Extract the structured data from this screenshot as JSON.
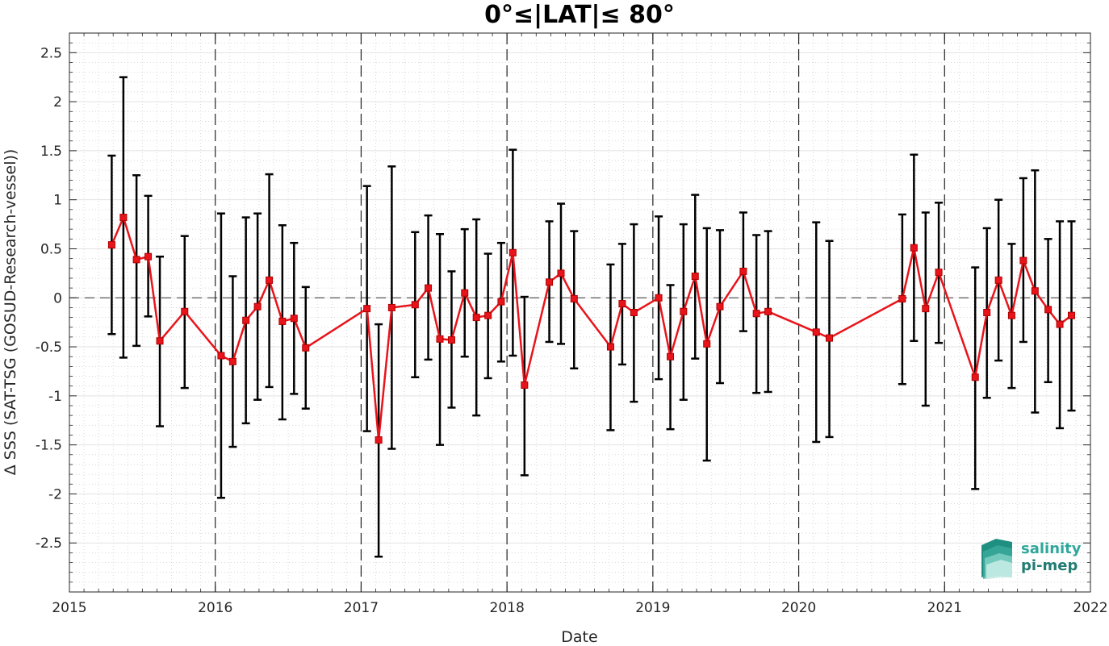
{
  "chart_data": {
    "type": "line",
    "title": "0°≤|LAT|≤ 80°",
    "xlabel": "Date",
    "ylabel": "Δ SSS (SAT-TSG (GOSUD-Research-vessel))",
    "xlim": [
      2015,
      2022
    ],
    "ylim": [
      -3,
      2.7
    ],
    "xticks": [
      2015,
      2016,
      2017,
      2018,
      2019,
      2020,
      2021,
      2022
    ],
    "xtick_labels": [
      "2015",
      "2016",
      "2017",
      "2018",
      "2019",
      "2020",
      "2021",
      "2022"
    ],
    "yticks": [
      -2.5,
      -2,
      -1.5,
      -1,
      -0.5,
      0,
      0.5,
      1,
      1.5,
      2,
      2.5
    ],
    "ytick_labels": [
      "-2.5",
      "-2",
      "-1.5",
      "-1",
      "-0.5",
      "0",
      "0.5",
      "1",
      "1.5",
      "2",
      "2.5"
    ],
    "grid": true,
    "minor_grid": true,
    "zero_line": "dashed",
    "year_lines": "dashed",
    "line_color": "#e8141b",
    "errorbar_color": "#000000",
    "series": [
      {
        "points": [
          {
            "x": 2015.29,
            "y": 0.54,
            "lo": -0.37,
            "hi": 1.45
          },
          {
            "x": 2015.37,
            "y": 0.82,
            "lo": -0.61,
            "hi": 2.25
          },
          {
            "x": 2015.46,
            "y": 0.39,
            "lo": -0.49,
            "hi": 1.25
          },
          {
            "x": 2015.54,
            "y": 0.42,
            "lo": -0.19,
            "hi": 1.04
          },
          {
            "x": 2015.62,
            "y": -0.44,
            "lo": -1.31,
            "hi": 0.42
          },
          {
            "x": 2015.79,
            "y": -0.14,
            "lo": -0.92,
            "hi": 0.63
          },
          {
            "x": 2016.04,
            "y": -0.59,
            "lo": -2.04,
            "hi": 0.86
          },
          {
            "x": 2016.12,
            "y": -0.65,
            "lo": -1.52,
            "hi": 0.22
          },
          {
            "x": 2016.21,
            "y": -0.23,
            "lo": -1.28,
            "hi": 0.82
          },
          {
            "x": 2016.29,
            "y": -0.09,
            "lo": -1.04,
            "hi": 0.86
          },
          {
            "x": 2016.37,
            "y": 0.18,
            "lo": -0.91,
            "hi": 1.26
          },
          {
            "x": 2016.46,
            "y": -0.24,
            "lo": -1.24,
            "hi": 0.74
          },
          {
            "x": 2016.54,
            "y": -0.21,
            "lo": -0.98,
            "hi": 0.56
          },
          {
            "x": 2016.62,
            "y": -0.51,
            "lo": -1.13,
            "hi": 0.11
          },
          {
            "x": 2017.04,
            "y": -0.11,
            "lo": -1.36,
            "hi": 1.14
          },
          {
            "x": 2017.12,
            "y": -1.45,
            "lo": -2.64,
            "hi": -0.27
          },
          {
            "x": 2017.21,
            "y": -0.1,
            "lo": -1.54,
            "hi": 1.34
          },
          {
            "x": 2017.37,
            "y": -0.07,
            "lo": -0.81,
            "hi": 0.67
          },
          {
            "x": 2017.46,
            "y": 0.1,
            "lo": -0.63,
            "hi": 0.84
          },
          {
            "x": 2017.54,
            "y": -0.42,
            "lo": -1.5,
            "hi": 0.65
          },
          {
            "x": 2017.62,
            "y": -0.43,
            "lo": -1.12,
            "hi": 0.27
          },
          {
            "x": 2017.71,
            "y": 0.05,
            "lo": -0.6,
            "hi": 0.7
          },
          {
            "x": 2017.79,
            "y": -0.2,
            "lo": -1.2,
            "hi": 0.8
          },
          {
            "x": 2017.87,
            "y": -0.18,
            "lo": -0.82,
            "hi": 0.45
          },
          {
            "x": 2017.96,
            "y": -0.04,
            "lo": -0.65,
            "hi": 0.56
          },
          {
            "x": 2018.04,
            "y": 0.46,
            "lo": -0.59,
            "hi": 1.51
          },
          {
            "x": 2018.12,
            "y": -0.89,
            "lo": -1.81,
            "hi": 0.01
          },
          {
            "x": 2018.29,
            "y": 0.16,
            "lo": -0.45,
            "hi": 0.78
          },
          {
            "x": 2018.37,
            "y": 0.25,
            "lo": -0.47,
            "hi": 0.96
          },
          {
            "x": 2018.46,
            "y": -0.01,
            "lo": -0.72,
            "hi": 0.68
          },
          {
            "x": 2018.71,
            "y": -0.5,
            "lo": -1.35,
            "hi": 0.34
          },
          {
            "x": 2018.79,
            "y": -0.06,
            "lo": -0.68,
            "hi": 0.55
          },
          {
            "x": 2018.87,
            "y": -0.15,
            "lo": -1.06,
            "hi": 0.75
          },
          {
            "x": 2019.04,
            "y": 0.0,
            "lo": -0.83,
            "hi": 0.83
          },
          {
            "x": 2019.12,
            "y": -0.6,
            "lo": -1.34,
            "hi": 0.13
          },
          {
            "x": 2019.21,
            "y": -0.14,
            "lo": -1.04,
            "hi": 0.75
          },
          {
            "x": 2019.29,
            "y": 0.22,
            "lo": -0.62,
            "hi": 1.05
          },
          {
            "x": 2019.37,
            "y": -0.47,
            "lo": -1.66,
            "hi": 0.71
          },
          {
            "x": 2019.46,
            "y": -0.09,
            "lo": -0.87,
            "hi": 0.69
          },
          {
            "x": 2019.62,
            "y": 0.27,
            "lo": -0.34,
            "hi": 0.87
          },
          {
            "x": 2019.71,
            "y": -0.16,
            "lo": -0.97,
            "hi": 0.64
          },
          {
            "x": 2019.79,
            "y": -0.14,
            "lo": -0.96,
            "hi": 0.68
          },
          {
            "x": 2020.12,
            "y": -0.35,
            "lo": -1.47,
            "hi": 0.77
          },
          {
            "x": 2020.21,
            "y": -0.41,
            "lo": -1.42,
            "hi": 0.58
          },
          {
            "x": 2020.71,
            "y": -0.01,
            "lo": -0.88,
            "hi": 0.85
          },
          {
            "x": 2020.79,
            "y": 0.51,
            "lo": -0.44,
            "hi": 1.46
          },
          {
            "x": 2020.87,
            "y": -0.11,
            "lo": -1.1,
            "hi": 0.87
          },
          {
            "x": 2020.96,
            "y": 0.26,
            "lo": -0.46,
            "hi": 0.97
          },
          {
            "x": 2021.21,
            "y": -0.81,
            "lo": -1.95,
            "hi": 0.31
          },
          {
            "x": 2021.29,
            "y": -0.15,
            "lo": -1.02,
            "hi": 0.71
          },
          {
            "x": 2021.37,
            "y": 0.18,
            "lo": -0.64,
            "hi": 1.0
          },
          {
            "x": 2021.46,
            "y": -0.18,
            "lo": -0.92,
            "hi": 0.55
          },
          {
            "x": 2021.54,
            "y": 0.38,
            "lo": -0.45,
            "hi": 1.22
          },
          {
            "x": 2021.62,
            "y": 0.07,
            "lo": -1.17,
            "hi": 1.3
          },
          {
            "x": 2021.71,
            "y": -0.12,
            "lo": -0.86,
            "hi": 0.6
          },
          {
            "x": 2021.79,
            "y": -0.27,
            "lo": -1.33,
            "hi": 0.78
          },
          {
            "x": 2021.87,
            "y": -0.18,
            "lo": -1.15,
            "hi": 0.78
          }
        ]
      }
    ]
  },
  "logo": {
    "line1": "salinity",
    "line2": "pi-mep",
    "color_light": "#2fa79a",
    "color_dark": "#227c72"
  }
}
